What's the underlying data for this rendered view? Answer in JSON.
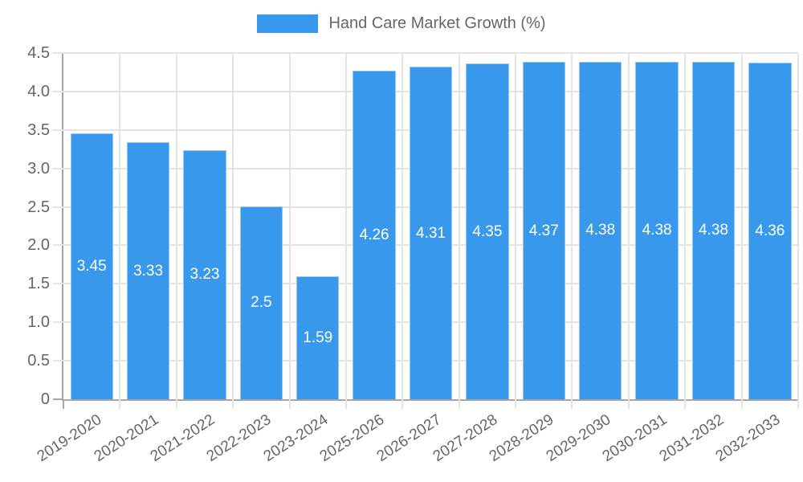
{
  "chart_data": {
    "type": "bar",
    "title": "Hand Care Market Growth (%)",
    "legend_label": "Hand Care Market Growth (%)",
    "legend_position": "top",
    "categories": [
      "2019-2020",
      "2020-2021",
      "2021-2022",
      "2022-2023",
      "2023-2024",
      "2025-2026",
      "2026-2027",
      "2027-2028",
      "2028-2029",
      "2029-2030",
      "2030-2031",
      "2031-2032",
      "2032-2033"
    ],
    "values": [
      3.45,
      3.33,
      3.23,
      2.5,
      1.59,
      4.26,
      4.31,
      4.35,
      4.37,
      4.38,
      4.38,
      4.38,
      4.36
    ],
    "bar_labels": [
      "3.45",
      "3.33",
      "3.23",
      "2.5",
      "1.59",
      "4.26",
      "4.31",
      "4.35",
      "4.37",
      "4.38",
      "4.38",
      "4.38",
      "4.36"
    ],
    "xlabel": "",
    "ylabel": "",
    "ylim": [
      0,
      4.5
    ],
    "y_tick_values": [
      4.5,
      4.0,
      3.5,
      3.0,
      2.5,
      2.0,
      1.5,
      1.0,
      0.5,
      0
    ],
    "y_tick_labels": [
      "4.5",
      "4.0",
      "3.5",
      "3.0",
      "2.5",
      "2.0",
      "1.5",
      "1.0",
      "0.5",
      "0"
    ],
    "grid": true,
    "colors": {
      "bar_fill": "#3899ec",
      "bar_border": "#93c6ef",
      "gridline": "#e4e4e4",
      "axis_line": "#a6a6a6",
      "tick_label_text": "#666666",
      "legend_text": "#666666",
      "bar_value_text": "#ffffff",
      "background": "#ffffff"
    }
  }
}
